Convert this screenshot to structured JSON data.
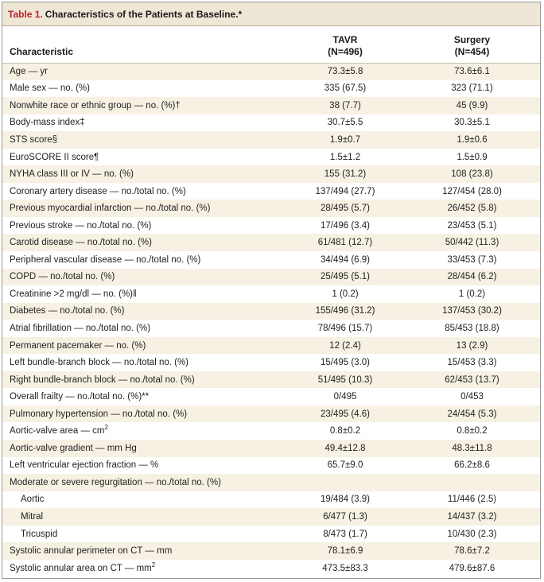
{
  "table": {
    "number": "Table 1.",
    "title": "Characteristics of the Patients at Baseline.*",
    "columns": {
      "characteristic": "Characteristic",
      "tavr_name": "TAVR",
      "tavr_n": "(N=496)",
      "surgery_name": "Surgery",
      "surgery_n": "(N=454)"
    },
    "rows": [
      {
        "label": "Age — yr",
        "tavr": "73.3±5.8",
        "surgery": "73.6±6.1"
      },
      {
        "label": "Male sex — no. (%)",
        "tavr": "335 (67.5)",
        "surgery": "323 (71.1)"
      },
      {
        "label": "Nonwhite race or ethnic group — no. (%)†",
        "tavr": "38 (7.7)",
        "surgery": "45 (9.9)"
      },
      {
        "label": "Body-mass index‡",
        "tavr": "30.7±5.5",
        "surgery": "30.3±5.1"
      },
      {
        "label": "STS score§",
        "tavr": "1.9±0.7",
        "surgery": "1.9±0.6"
      },
      {
        "label": "EuroSCORE II score¶",
        "tavr": "1.5±1.2",
        "surgery": "1.5±0.9"
      },
      {
        "label": "NYHA class III or IV — no. (%)",
        "tavr": "155 (31.2)",
        "surgery": "108 (23.8)"
      },
      {
        "label": "Coronary artery disease — no./total no. (%)",
        "tavr": "137/494 (27.7)",
        "surgery": "127/454 (28.0)"
      },
      {
        "label": "Previous myocardial infarction — no./total no. (%)",
        "tavr": "28/495 (5.7)",
        "surgery": "26/452 (5.8)"
      },
      {
        "label": "Previous stroke — no./total no. (%)",
        "tavr": "17/496 (3.4)",
        "surgery": "23/453 (5.1)"
      },
      {
        "label": "Carotid disease — no./total no. (%)",
        "tavr": "61/481 (12.7)",
        "surgery": "50/442 (11.3)"
      },
      {
        "label": "Peripheral vascular disease — no./total no. (%)",
        "tavr": "34/494 (6.9)",
        "surgery": "33/453 (7.3)"
      },
      {
        "label": "COPD — no./total no. (%)",
        "tavr": "25/495 (5.1)",
        "surgery": "28/454 (6.2)"
      },
      {
        "label": "Creatinine >2 mg/dl — no. (%)‖",
        "tavr": "1 (0.2)",
        "surgery": "1 (0.2)"
      },
      {
        "label": "Diabetes — no./total no. (%)",
        "tavr": "155/496 (31.2)",
        "surgery": "137/453 (30.2)"
      },
      {
        "label": "Atrial fibrillation — no./total no. (%)",
        "tavr": "78/496 (15.7)",
        "surgery": "85/453 (18.8)"
      },
      {
        "label": "Permanent pacemaker — no. (%)",
        "tavr": "12 (2.4)",
        "surgery": "13 (2.9)"
      },
      {
        "label": "Left bundle-branch block — no./total no. (%)",
        "tavr": "15/495 (3.0)",
        "surgery": "15/453 (3.3)"
      },
      {
        "label": "Right bundle-branch block — no./total no. (%)",
        "tavr": "51/495 (10.3)",
        "surgery": "62/453 (13.7)"
      },
      {
        "label": "Overall frailty — no./total no. (%)**",
        "tavr": "0/495",
        "surgery": "0/453"
      },
      {
        "label": "Pulmonary hypertension — no./total no. (%)",
        "tavr": "23/495 (4.6)",
        "surgery": "24/454 (5.3)"
      },
      {
        "label": "Aortic-valve area — cm",
        "sup": "2",
        "tavr": "0.8±0.2",
        "surgery": "0.8±0.2"
      },
      {
        "label": "Aortic-valve gradient — mm Hg",
        "tavr": "49.4±12.8",
        "surgery": "48.3±11.8"
      },
      {
        "label": "Left ventricular ejection fraction — %",
        "tavr": "65.7±9.0",
        "surgery": "66.2±8.6"
      },
      {
        "label": "Moderate or severe regurgitation — no./total no. (%)",
        "tavr": "",
        "surgery": ""
      },
      {
        "label": "Aortic",
        "indent": true,
        "tavr": "19/484 (3.9)",
        "surgery": "11/446 (2.5)"
      },
      {
        "label": "Mitral",
        "indent": true,
        "tavr": "6/477 (1.3)",
        "surgery": "14/437 (3.2)"
      },
      {
        "label": "Tricuspid",
        "indent": true,
        "tavr": "8/473 (1.7)",
        "surgery": "10/430 (2.3)"
      },
      {
        "label": "Systolic annular perimeter on CT — mm",
        "tavr": "78.1±6.9",
        "surgery": "78.6±7.2"
      },
      {
        "label": "Systolic annular area on CT — mm",
        "sup": "2",
        "tavr": "473.5±83.3",
        "surgery": "479.6±87.6"
      }
    ]
  }
}
